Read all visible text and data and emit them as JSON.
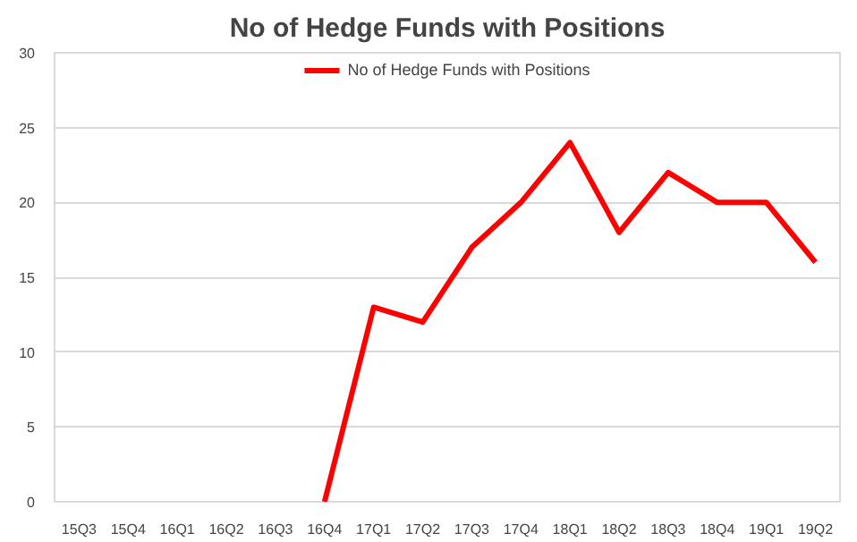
{
  "chart_data": {
    "type": "line",
    "title": "No of Hedge Funds with Positions",
    "categories": [
      "15Q3",
      "15Q4",
      "16Q1",
      "16Q2",
      "16Q3",
      "16Q4",
      "17Q1",
      "17Q2",
      "17Q3",
      "17Q4",
      "18Q1",
      "18Q2",
      "18Q3",
      "18Q4",
      "19Q1",
      "19Q2"
    ],
    "series": [
      {
        "name": "No of Hedge Funds with Positions",
        "color": "#ff0000",
        "values": [
          null,
          null,
          null,
          null,
          null,
          0,
          13,
          12,
          17,
          20,
          24,
          18,
          22,
          20,
          20,
          16
        ]
      }
    ],
    "ylim": [
      0,
      30
    ],
    "yticks": [
      0,
      5,
      10,
      15,
      20,
      25,
      30
    ],
    "grid": "y",
    "legend": "top"
  }
}
